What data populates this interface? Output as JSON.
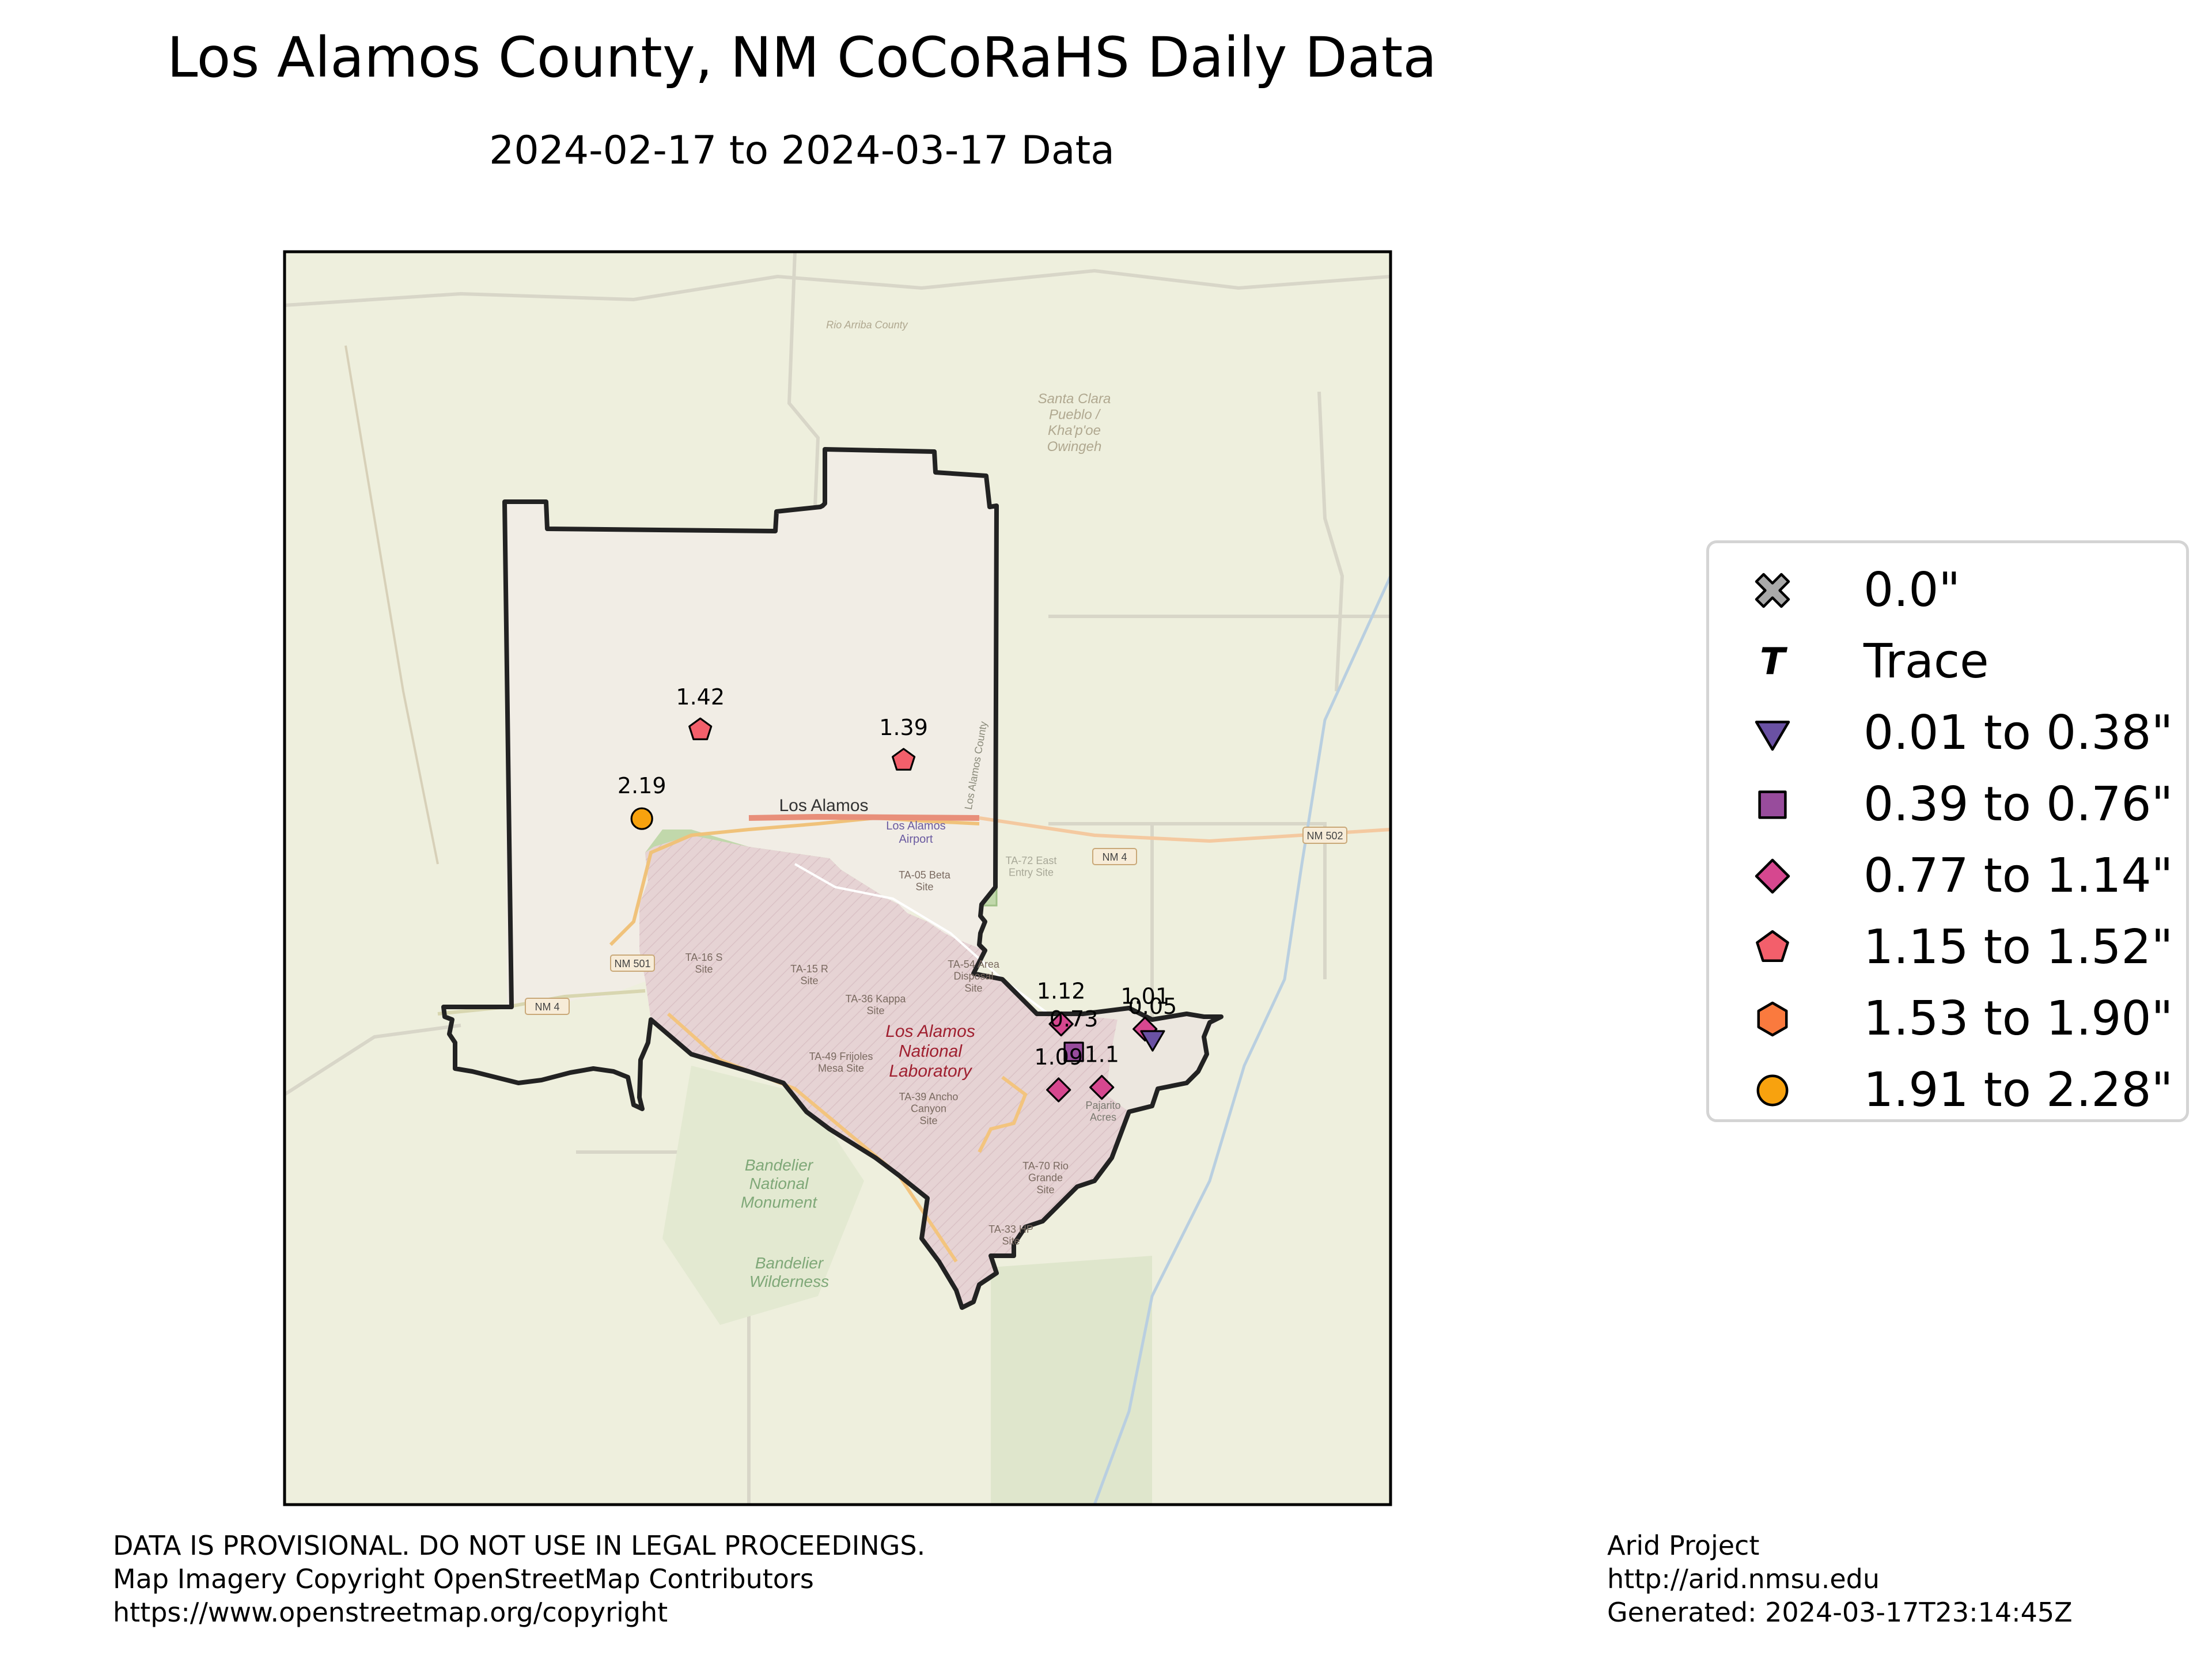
{
  "header": {
    "title": "Los Alamos County, NM CoCoRaHS Daily Data",
    "subtitle": "2024-02-17 to 2024-03-17 Data"
  },
  "map": {
    "place_labels": [
      {
        "text": "Los Alamos"
      },
      {
        "text": "Los Alamos\nNational\nLaboratory"
      },
      {
        "text": "Bandelier\nNational\nMonument"
      },
      {
        "text": "Bandelier\nWilderness"
      },
      {
        "text": "Santa Clara\nPueblo /\nKha'p'oe\nOwingeh"
      },
      {
        "text": "Rio Arriba County"
      },
      {
        "text": "Los Alamos County"
      },
      {
        "text": "Los Alamos\nAirport"
      },
      {
        "text": "TA-05 Beta\nSite"
      },
      {
        "text": "TA-16 S\nSite"
      },
      {
        "text": "TA-15 R\nSite"
      },
      {
        "text": "TA-36 Kappa\nSite"
      },
      {
        "text": "TA-49 Frijoles\nMesa Site"
      },
      {
        "text": "TA-39 Ancho\nCanyon\nSite"
      },
      {
        "text": "TA-54 Area\nDisposal\nSite"
      },
      {
        "text": "TA-70 Rio\nGrande\nSite"
      },
      {
        "text": "TA-33 HP\nSite"
      },
      {
        "text": "TA-72 East\nEntry Site"
      },
      {
        "text": "Pajarito\nAcres"
      }
    ],
    "road_shields": [
      {
        "text": "NM 501"
      },
      {
        "text": "NM 4"
      },
      {
        "text": "NM 4"
      },
      {
        "text": "NM 502"
      }
    ],
    "stations": [
      {
        "value": "1.42",
        "category": "1.15 to 1.52\"",
        "lon": -106.355,
        "lat": 35.932
      },
      {
        "value": "1.39",
        "category": "1.15 to 1.52\"",
        "lon": -106.275,
        "lat": 35.92
      },
      {
        "value": "2.19",
        "category": "1.91 to 2.28\"",
        "lon": -106.378,
        "lat": 35.897
      },
      {
        "value": "1.12",
        "category": "0.77 to 1.14\"",
        "lon": -106.213,
        "lat": 35.816
      },
      {
        "value": "0.73",
        "category": "0.39 to 0.76\"",
        "lon": -106.208,
        "lat": 35.805
      },
      {
        "value": "1.09",
        "category": "0.77 to 1.14\"",
        "lon": -106.214,
        "lat": 35.79
      },
      {
        "value": "1.01",
        "category": "0.77 to 1.14\"",
        "lon": -106.18,
        "lat": 35.814
      },
      {
        "value": "0.05",
        "category": "0.01 to 0.38\"",
        "lon": -106.177,
        "lat": 35.81
      },
      {
        "value": "1.1",
        "category": "0.77 to 1.14\"",
        "lon": -106.197,
        "lat": 35.791
      }
    ]
  },
  "legend": {
    "items": [
      {
        "label": "0.0\"",
        "icon": "x-marker-icon",
        "color": "#a9a9a9"
      },
      {
        "label": "Trace",
        "icon": "t-marker-icon",
        "color": "#000000"
      },
      {
        "label": "0.01 to 0.38\"",
        "icon": "triangle-down-marker-icon",
        "color": "#6a51a3"
      },
      {
        "label": "0.39 to 0.76\"",
        "icon": "square-marker-icon",
        "color": "#984c9c"
      },
      {
        "label": "0.77 to 1.14\"",
        "icon": "diamond-marker-icon",
        "color": "#d6478f"
      },
      {
        "label": "1.15 to 1.52\"",
        "icon": "pentagon-marker-icon",
        "color": "#f35f6b"
      },
      {
        "label": "1.53 to 1.90\"",
        "icon": "hexagon-marker-icon",
        "color": "#fa7a3e"
      },
      {
        "label": "1.91 to 2.28\"",
        "icon": "circle-marker-icon",
        "color": "#f8a20e"
      }
    ]
  },
  "footer": {
    "left": [
      "DATA IS PROVISIONAL. DO NOT USE IN LEGAL PROCEEDINGS.",
      "Map Imagery Copyright OpenStreetMap Contributors",
      "https://www.openstreetmap.org/copyright"
    ],
    "right": [
      "Arid Project",
      "http://arid.nmsu.edu",
      "Generated: 2024-03-17T23:14:45Z"
    ]
  }
}
